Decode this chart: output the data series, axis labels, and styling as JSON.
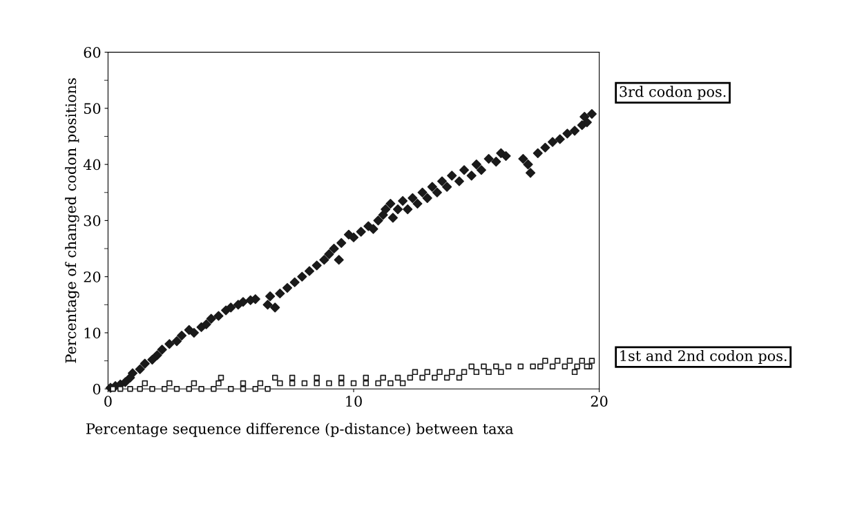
{
  "chart_data": {
    "type": "scatter",
    "xlabel": "Percentage sequence difference (p-distance) between taxa",
    "ylabel": "Percentage of changed codon positions",
    "xlim": [
      0,
      20
    ],
    "xticks": [
      0,
      10,
      20
    ],
    "ylim": [
      0,
      60
    ],
    "yticks": [
      0,
      10,
      20,
      30,
      40,
      50,
      60
    ],
    "grid": false,
    "legend": false,
    "annotations": [
      {
        "text": "3rd codon pos.",
        "x": 19.7,
        "y": 49
      },
      {
        "text": "1st and 2nd codon pos.",
        "x": 19.7,
        "y": 5
      }
    ],
    "series": [
      {
        "marker": "diamond",
        "color": "#1a1a1a",
        "x": [
          0.1,
          0.3,
          0.5,
          0.7,
          0.9,
          1.0,
          1.3,
          1.5,
          1.8,
          2.0,
          2.2,
          2.5,
          2.8,
          3.0,
          3.3,
          3.5,
          3.8,
          4.0,
          4.2,
          4.5,
          4.8,
          5.0,
          5.3,
          5.5,
          5.8,
          6.0,
          6.5,
          6.6,
          6.8,
          7.0,
          7.3,
          7.6,
          7.9,
          8.2,
          8.5,
          8.8,
          9.0,
          9.2,
          9.4,
          9.5,
          9.8,
          10.0,
          10.3,
          10.6,
          10.8,
          11.0,
          11.2,
          11.3,
          11.5,
          11.6,
          11.8,
          12.0,
          12.2,
          12.4,
          12.6,
          12.8,
          13.0,
          13.2,
          13.4,
          13.6,
          13.8,
          14.0,
          14.3,
          14.5,
          14.8,
          15.0,
          15.2,
          15.5,
          15.8,
          16.0,
          16.2,
          16.9,
          17.1,
          17.2,
          17.5,
          17.8,
          18.1,
          18.4,
          18.7,
          19.0,
          19.3,
          19.5,
          19.7,
          19.4
        ],
        "values": [
          0.2,
          0.5,
          0.8,
          1.2,
          2,
          2.8,
          3.5,
          4.5,
          5.2,
          6,
          7,
          8,
          8.5,
          9.5,
          10.5,
          10,
          11,
          11.5,
          12.5,
          13,
          14,
          14.5,
          15,
          15.5,
          15.8,
          16,
          15,
          16.5,
          14.5,
          17,
          18,
          19,
          20,
          21,
          22,
          23,
          24,
          25,
          23,
          26,
          27.5,
          27,
          28,
          29,
          28.5,
          30,
          31,
          32,
          33,
          30.5,
          32,
          33.5,
          32,
          34,
          33,
          35,
          34,
          36,
          35,
          37,
          36,
          38,
          37,
          39,
          38,
          40,
          39,
          41,
          40.5,
          42,
          41.5,
          41,
          40,
          38.5,
          42,
          43,
          44,
          44.5,
          45.5,
          46,
          47,
          47.5,
          49,
          48.5
        ]
      },
      {
        "marker": "square",
        "color": "#1a1a1a",
        "x": [
          0.2,
          0.5,
          0.9,
          1.3,
          1.8,
          2.3,
          2.8,
          3.3,
          3.8,
          4.3,
          4.6,
          5.0,
          5.5,
          6.0,
          6.5,
          1.5,
          2.5,
          3.5,
          4.5,
          5.5,
          6.2,
          7.0,
          7.5,
          8.0,
          8.5,
          9.0,
          9.5,
          10.0,
          10.5,
          11.0,
          11.5,
          12.0,
          6.8,
          7.5,
          8.5,
          9.5,
          10.5,
          11.2,
          11.8,
          12.3,
          12.8,
          13.3,
          13.8,
          14.3,
          12.5,
          13.0,
          13.5,
          14.0,
          14.5,
          15.0,
          15.5,
          16.0,
          14.8,
          15.3,
          15.8,
          16.3,
          16.8,
          17.3,
          17.6,
          18.1,
          18.6,
          19.1,
          19.6,
          17.8,
          18.3,
          18.8,
          19.3,
          19.7,
          19.0,
          19.5
        ],
        "values": [
          0,
          0,
          0,
          0,
          0,
          0,
          0,
          0,
          0,
          0,
          2,
          0,
          0,
          0,
          0,
          1,
          1,
          1,
          1,
          1,
          1,
          1,
          1,
          1,
          1,
          1,
          1,
          1,
          1,
          1,
          1,
          1,
          2,
          2,
          2,
          2,
          2,
          2,
          2,
          2,
          2,
          2,
          2,
          2,
          3,
          3,
          3,
          3,
          3,
          3,
          3,
          3,
          4,
          4,
          4,
          4,
          4,
          4,
          4,
          4,
          4,
          4,
          4,
          5,
          5,
          5,
          5,
          5,
          3,
          4
        ]
      }
    ]
  }
}
